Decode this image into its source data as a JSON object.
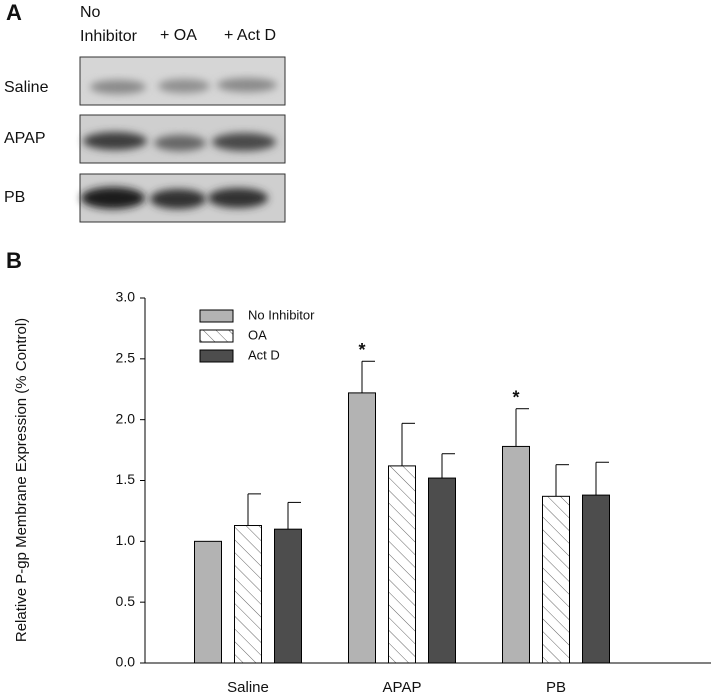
{
  "panel_a": {
    "label": "A",
    "columns": [
      {
        "lines": [
          "No",
          "Inhibitor"
        ]
      },
      {
        "lines": [
          "+ OA"
        ]
      },
      {
        "lines": [
          "+ Act D"
        ]
      }
    ],
    "rows": [
      "Saline",
      "APAP",
      "PB"
    ]
  },
  "chart_data": {
    "type": "bar",
    "panel_label": "B",
    "ylabel": "Relative P-gp Membrane Expression (% Control)",
    "categories": [
      "Saline",
      "APAP",
      "PB"
    ],
    "series": [
      {
        "name": "No Inhibitor",
        "color": "#b3b3b3",
        "hatch": false,
        "values": [
          1.0,
          2.22,
          1.78
        ],
        "errors": [
          null,
          0.26,
          0.31
        ]
      },
      {
        "name": "OA",
        "color": "#ffffff",
        "hatch": true,
        "values": [
          1.13,
          1.62,
          1.37
        ],
        "errors": [
          0.26,
          0.35,
          0.26
        ]
      },
      {
        "name": "Act D",
        "color": "#4d4d4d",
        "hatch": false,
        "values": [
          1.1,
          1.52,
          1.38
        ],
        "errors": [
          0.22,
          0.2,
          0.27
        ]
      }
    ],
    "annotations": [
      {
        "text": "*",
        "category": "APAP",
        "series": "No Inhibitor"
      },
      {
        "text": "*",
        "category": "PB",
        "series": "No Inhibitor"
      }
    ],
    "ylim": [
      0,
      3
    ],
    "yticks": [
      {
        "value": 0,
        "label": "0.0"
      },
      {
        "value": 0.5,
        "label": "0.5"
      },
      {
        "value": 1,
        "label": "1.0"
      },
      {
        "value": 1.5,
        "label": "1.5"
      },
      {
        "value": 2,
        "label": "2.0"
      },
      {
        "value": 2.5,
        "label": "2.5"
      },
      {
        "value": 3,
        "label": "3.0"
      }
    ],
    "legend": "upper left"
  }
}
